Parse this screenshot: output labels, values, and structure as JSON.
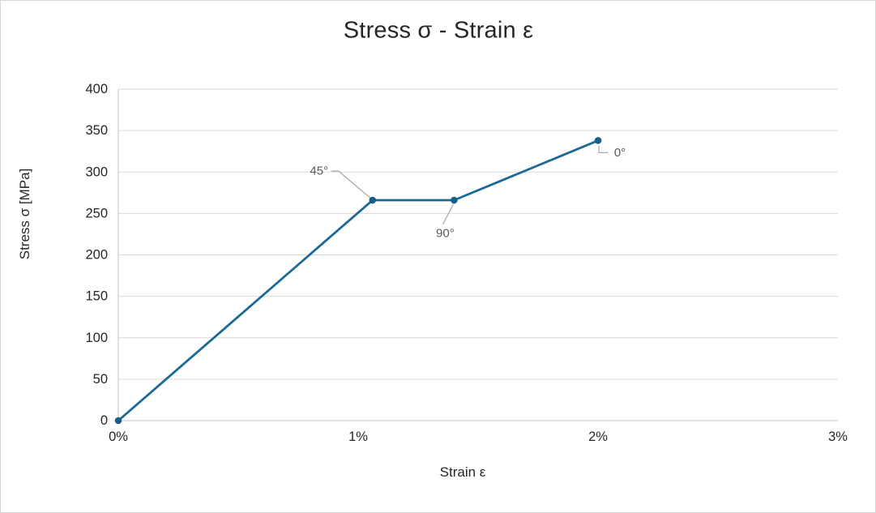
{
  "chart_data": {
    "type": "line",
    "title": "Stress σ - Strain ε",
    "xlabel": "Strain ε",
    "ylabel": "Stress σ [MPa]",
    "series": [
      {
        "name": "stress-strain-curve",
        "points": [
          {
            "strain_pct": 0,
            "stress_mpa": 0
          },
          {
            "strain_pct": 1.06,
            "stress_mpa": 266
          },
          {
            "strain_pct": 1.4,
            "stress_mpa": 266
          },
          {
            "strain_pct": 2.0,
            "stress_mpa": 338
          }
        ]
      }
    ],
    "annotations": [
      {
        "label": "45°",
        "point_index": 1
      },
      {
        "label": "90°",
        "point_index": 2
      },
      {
        "label": "0°",
        "point_index": 3
      }
    ],
    "xticks": [
      "0%",
      "1%",
      "2%",
      "3%"
    ],
    "xtick_values": [
      0,
      1,
      2,
      3
    ],
    "yticks": [
      0,
      50,
      100,
      150,
      200,
      250,
      300,
      350,
      400
    ],
    "xlim": [
      0,
      3
    ],
    "ylim": [
      0,
      400
    ],
    "grid": "horizontal",
    "legend": "none",
    "colors": {
      "series_line": "#1C6A94",
      "marker_fill": "#15608A",
      "gridline": "#DADADA",
      "axis_line": "#C6C6C6",
      "tick_text": "#262626",
      "annotation_text": "#595959",
      "leader_line": "#A6A6A6",
      "title_text": "#262626",
      "background": "#FFFFFF",
      "frame_border": "#D6D6D6"
    }
  }
}
